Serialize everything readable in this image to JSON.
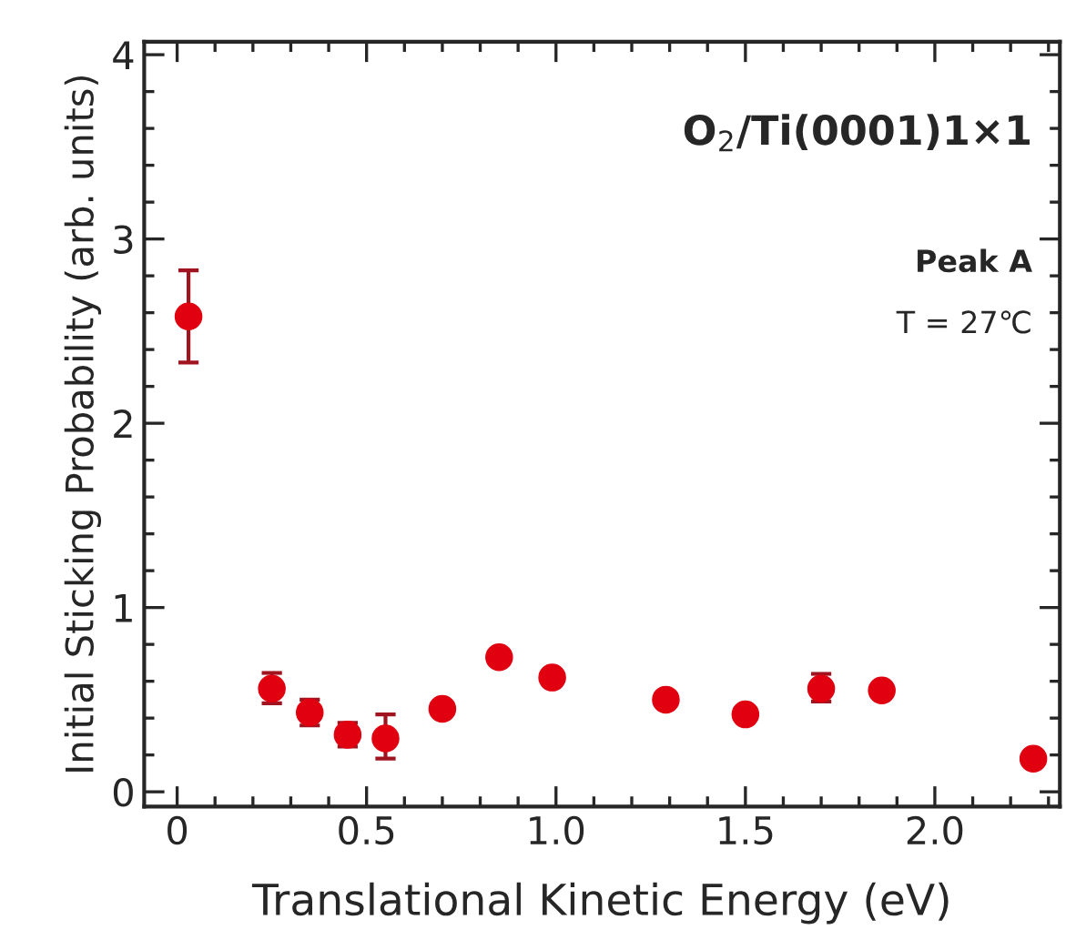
{
  "chart_data": {
    "type": "scatter",
    "xlabel": "Translational Kinetic Energy (eV)",
    "ylabel": "Initial Sticking Probability (arb. units)",
    "annotations": [
      "O$_{2}$/Ti(0001)1×1",
      "Peak A",
      "T = 27℃"
    ],
    "x": [
      0.03,
      0.25,
      0.35,
      0.45,
      0.55,
      0.7,
      0.85,
      0.99,
      1.29,
      1.5,
      1.7,
      1.86,
      2.26
    ],
    "series": [
      {
        "color": "#e00010",
        "values": [
          2.58,
          0.56,
          0.43,
          0.31,
          0.29,
          0.45,
          0.73,
          0.62,
          0.5,
          0.42,
          0.56,
          0.55,
          0.18
        ],
        "errors": [
          [
            2.33,
            2.83
          ],
          [
            0.48,
            0.645
          ],
          [
            0.36,
            0.5
          ],
          [
            0.245,
            0.375
          ],
          [
            0.18,
            0.42
          ],
          null,
          null,
          null,
          null,
          null,
          [
            0.49,
            0.64
          ],
          null,
          null
        ]
      }
    ],
    "xlim": [
      -0.087,
      2.33
    ],
    "ylim": [
      -0.08,
      4.07
    ],
    "xticks": [
      0,
      {
        "value": 0.5,
        "label": "0.5"
      },
      {
        "value": 1.0,
        "label": "1.0"
      },
      {
        "value": 1.5,
        "label": "1.5"
      },
      {
        "value": 2.0,
        "label": "2.0"
      }
    ],
    "yticks": [
      0,
      1,
      2,
      3,
      4
    ],
    "grid": false,
    "legend": false,
    "marker": "circle"
  }
}
